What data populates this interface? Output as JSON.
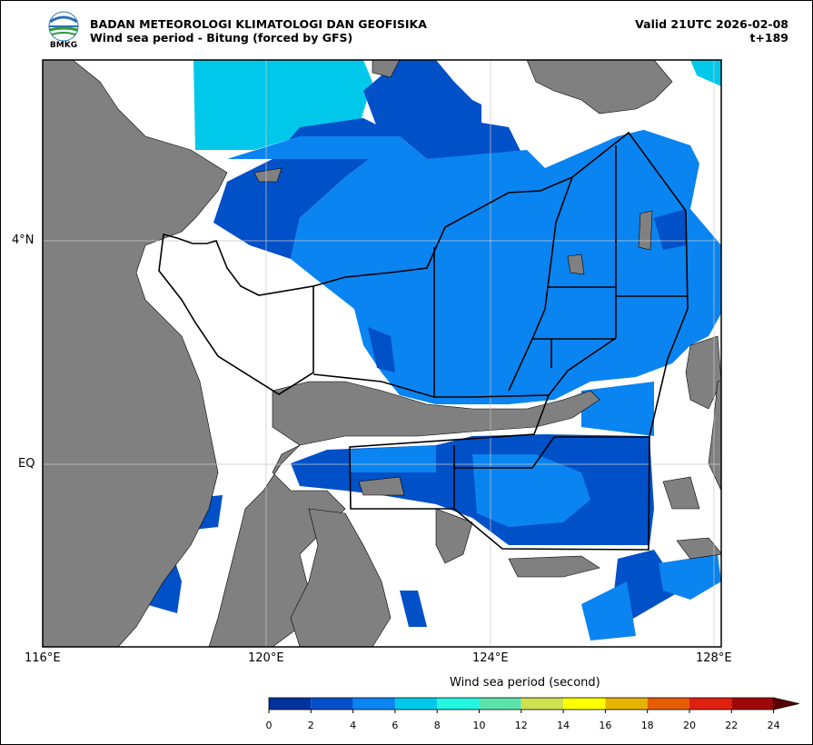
{
  "header": {
    "agency": "BADAN METEOROLOGI KLIMATOLOGI DAN GEOFISIKA",
    "subtitle": "Wind sea period - Bitung (forced by GFS)",
    "valid": "Valid 21UTC 2026-02-08",
    "step": "t+189"
  },
  "logo": {
    "text": "BMKG"
  },
  "axes": {
    "x_ticks": [
      "116°E",
      "120°E",
      "124°E",
      "128°E"
    ],
    "y_ticks": [
      "4°N",
      "EQ"
    ]
  },
  "colorbar": {
    "title": "Wind sea period (second)",
    "labels": [
      "0",
      "2",
      "4",
      "6",
      "8",
      "10",
      "12",
      "14",
      "16",
      "18",
      "20",
      "22",
      "24"
    ],
    "colors": [
      "#0033a0",
      "#0050c8",
      "#0a84f0",
      "#00c8ea",
      "#22f5e0",
      "#5ce3ac",
      "#cde151",
      "#ffff00",
      "#e6b400",
      "#e65c00",
      "#e02010",
      "#a00808"
    ],
    "extend_color": "#5a0000"
  },
  "palette": {
    "land": "#808080",
    "deep_blue": "#0050c8",
    "mid_blue": "#0a84f0",
    "cyan": "#00c8ea",
    "no_data": "#ffffff"
  }
}
